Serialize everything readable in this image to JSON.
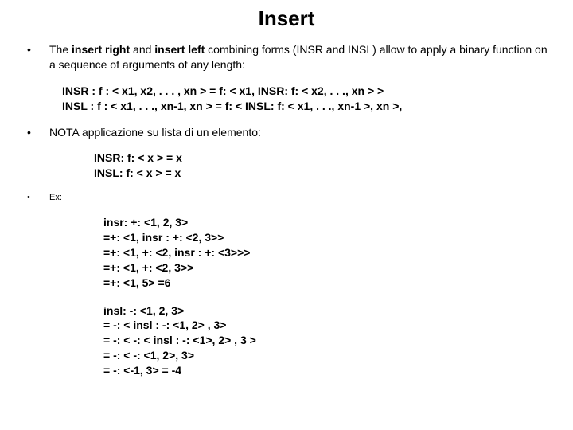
{
  "title": "Insert",
  "colors": {
    "background": "#ffffff",
    "text": "#000000"
  },
  "typography": {
    "title_fontsize": 26,
    "body_fontsize": 14,
    "small_fontsize": 11,
    "font_family": "Arial"
  },
  "section1": {
    "pre": "The ",
    "b1": "insert right",
    "mid1": " and ",
    "b2": "insert left",
    "mid2": " combining forms (INSR and INSL) allow to apply a binary function on a sequence of arguments of any length:"
  },
  "defs": {
    "insr": "INSR : f : < x1, x2, . . .  , xn > = f: < x1, INSR: f: < x2, . . ., xn > >",
    "insl": "INSL : f : < x1, . . ., xn-1, xn > = f: < INSL: f: < x1, . . ., xn-1 >, xn >,"
  },
  "section2": {
    "text": "NOTA applicazione su lista di un elemento:"
  },
  "single": {
    "insr": "INSR: f: < x > = x",
    "insl": "INSL: f: < x > = x"
  },
  "section3": {
    "label": "Ex:"
  },
  "ex_insr": {
    "l1": "insr: +: <1, 2, 3>",
    "l2": "=+: <1, insr : +: <2, 3>>",
    "l3": "=+: <1, +: <2, insr : +: <3>>>",
    "l4": "=+: <1, +: <2, 3>>",
    "l5": "=+: <1, 5> =6"
  },
  "ex_insl": {
    "l1": "insl: -: <1, 2, 3>",
    "l2": "= -: < insl : -: <1, 2> , 3>",
    "l3": "= -: < -: < insl : -: <1>, 2> , 3 >",
    "l4": "= -: < -: <1, 2>, 3>",
    "l5": "= -: <-1, 3> = -4"
  }
}
